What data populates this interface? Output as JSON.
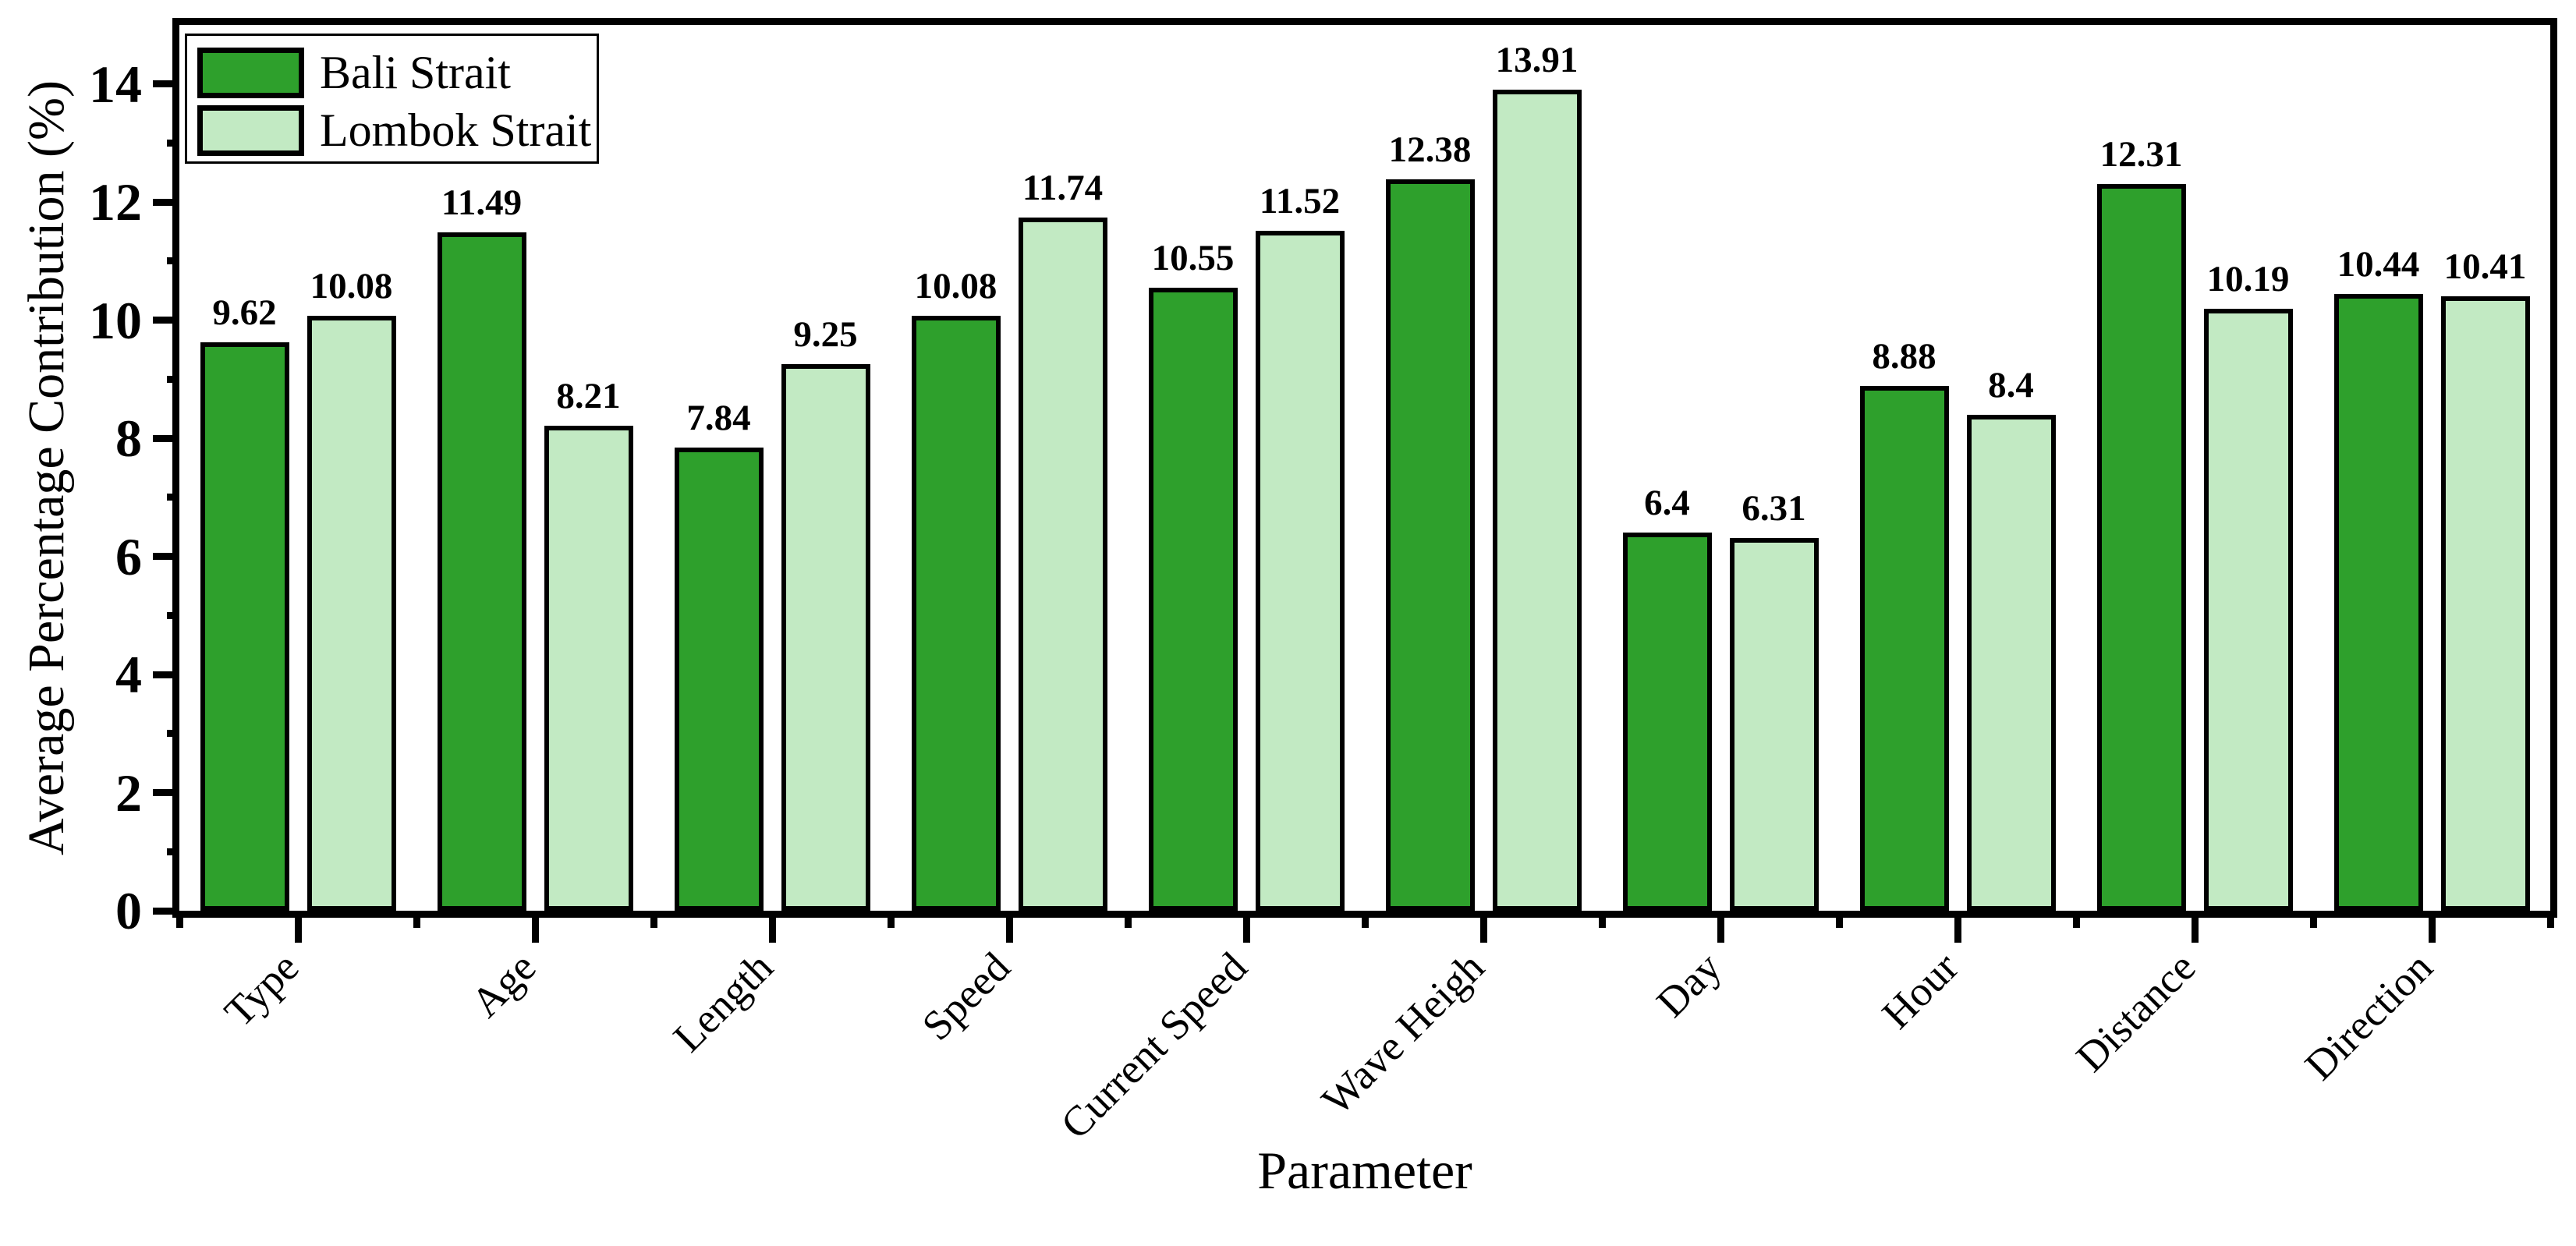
{
  "chart_data": {
    "type": "bar",
    "xlabel": "Parameter",
    "ylabel": "Average Percentage Contribution (%)",
    "ylim": [
      0,
      15
    ],
    "yticks_major": [
      0,
      2,
      4,
      6,
      8,
      10,
      12,
      14
    ],
    "yticks_minor": [
      1,
      3,
      5,
      7,
      9,
      11,
      13
    ],
    "grid": false,
    "legend_position": "top-left-inside",
    "background_color": "#ffffff",
    "axis_color": "#000000",
    "bar_border_color": "#000000",
    "categories": [
      "Type",
      "Age",
      "Length",
      "Speed",
      "Current Speed",
      "Wave Heigh",
      "Day",
      "Hour",
      "Distance",
      "Direction"
    ],
    "series": [
      {
        "name": "Bali Strait",
        "color": "#2EA02C",
        "values": [
          9.62,
          11.49,
          7.84,
          10.08,
          10.55,
          12.38,
          6.4,
          8.88,
          12.31,
          10.44
        ],
        "labels": [
          "9.62",
          "11.49",
          "7.84",
          "10.08",
          "10.55",
          "12.38",
          "6.4",
          "8.88",
          "12.31",
          "10.44"
        ]
      },
      {
        "name": "Lombok Strait",
        "color": "#C2EAC3",
        "values": [
          10.08,
          8.21,
          9.25,
          11.74,
          11.52,
          13.91,
          6.31,
          8.4,
          10.19,
          10.41
        ],
        "labels": [
          "10.08",
          "8.21",
          "9.25",
          "11.74",
          "11.52",
          "13.91",
          "6.31",
          "8.4",
          "10.19",
          "10.41"
        ]
      }
    ]
  }
}
